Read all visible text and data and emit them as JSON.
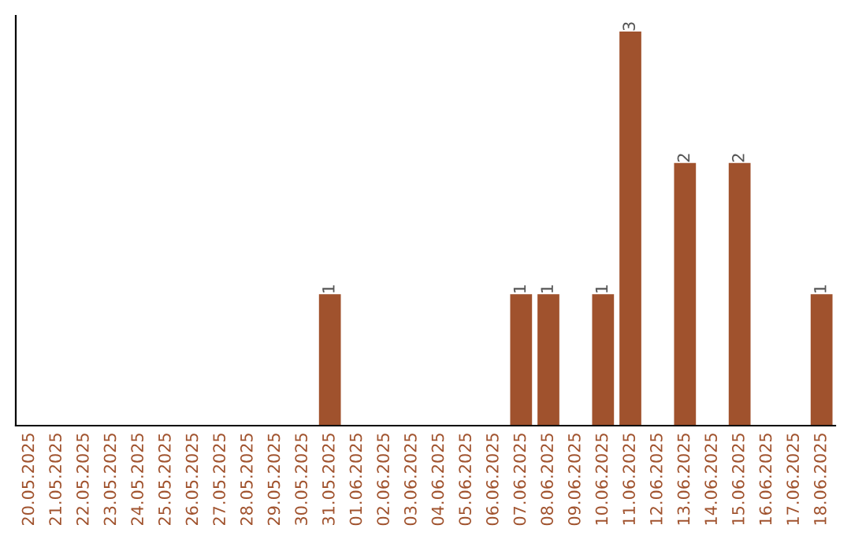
{
  "chart_data": {
    "type": "bar",
    "categories": [
      "20.05.2025",
      "21.05.2025",
      "22.05.2025",
      "23.05.2025",
      "24.05.2025",
      "25.05.2025",
      "26.05.2025",
      "27.05.2025",
      "28.05.2025",
      "29.05.2025",
      "30.05.2025",
      "31.05.2025",
      "01.06.2025",
      "02.06.2025",
      "03.06.2025",
      "04.06.2025",
      "05.06.2025",
      "06.06.2025",
      "07.06.2025",
      "08.06.2025",
      "09.06.2025",
      "10.06.2025",
      "11.06.2025",
      "12.06.2025",
      "13.06.2025",
      "14.06.2025",
      "15.06.2025",
      "16.06.2025",
      "17.06.2025",
      "18.06.2025"
    ],
    "values": [
      0,
      0,
      0,
      0,
      0,
      0,
      0,
      0,
      0,
      0,
      0,
      1,
      0,
      0,
      0,
      0,
      0,
      0,
      1,
      1,
      0,
      1,
      3,
      0,
      2,
      0,
      2,
      0,
      0,
      1
    ],
    "value_labels": [
      null,
      null,
      null,
      null,
      null,
      null,
      null,
      null,
      null,
      null,
      null,
      "1",
      null,
      null,
      null,
      null,
      null,
      null,
      "1",
      "1",
      null,
      "1",
      "3",
      null,
      "2",
      null,
      "2",
      null,
      null,
      "1"
    ],
    "color": "#a0522d",
    "grid": false,
    "legend": false
  }
}
